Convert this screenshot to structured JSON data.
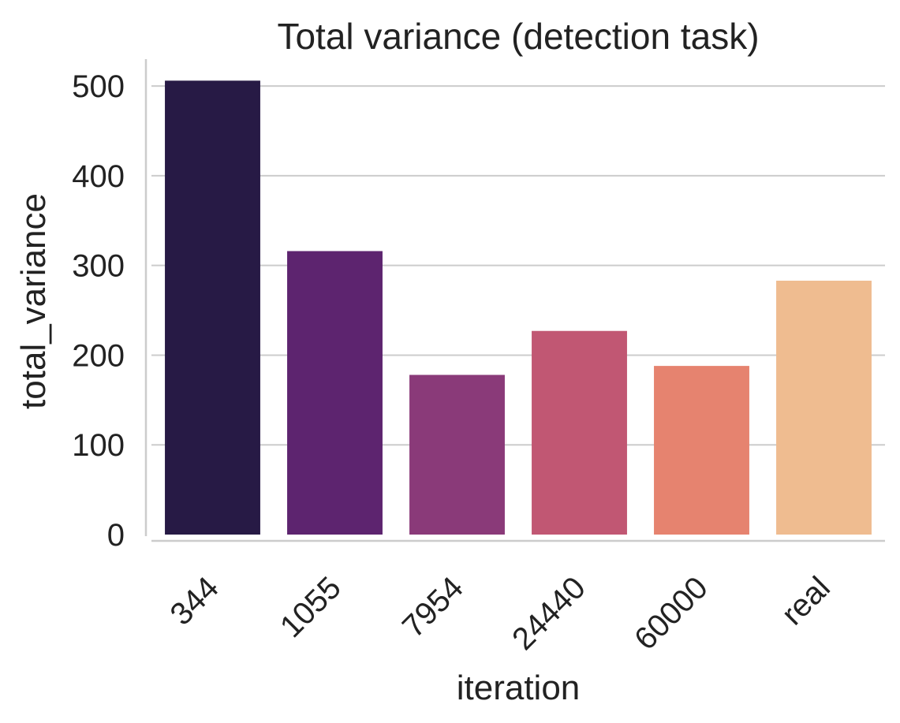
{
  "chart_data": {
    "type": "bar",
    "title": "Total variance (detection task)",
    "xlabel": "iteration",
    "ylabel": "total_variance",
    "categories": [
      "344",
      "1055",
      "7954",
      "24440",
      "60000",
      "real"
    ],
    "values": [
      506,
      316,
      178,
      227,
      188,
      283
    ],
    "ylim": [
      0,
      530
    ],
    "yticks": [
      0,
      100,
      200,
      300,
      400,
      500
    ],
    "grid": "horizontal",
    "colors": {
      "bars": [
        "#271A45",
        "#5D246F",
        "#8A3A79",
        "#C15773",
        "#E6836F",
        "#EFBC90"
      ],
      "grid": "#CCCCCC",
      "axis": "#CCCCCC",
      "text": "#222222"
    }
  }
}
